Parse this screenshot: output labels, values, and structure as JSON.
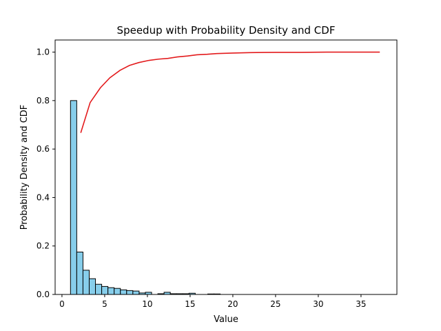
{
  "chart_data": {
    "type": "bar",
    "title": "Speedup with Probability Density and CDF",
    "xlabel": "Value",
    "ylabel": "Probability Density and CDF",
    "xlim": [
      -0.8,
      39.2
    ],
    "ylim": [
      0,
      1.05
    ],
    "x_ticks": [
      0,
      5,
      10,
      15,
      20,
      25,
      30,
      35
    ],
    "y_ticks": [
      0.0,
      0.2,
      0.4,
      0.6,
      0.8,
      1.0
    ],
    "grid": false,
    "legend": "none",
    "histogram": {
      "bin_edges": [
        1.0,
        1.73,
        2.46,
        3.19,
        3.92,
        4.65,
        5.38,
        6.11,
        6.84,
        7.57,
        8.3,
        9.03,
        9.76,
        10.49,
        11.22,
        11.95,
        12.68,
        13.41,
        14.14,
        14.87,
        15.6,
        16.33,
        17.06,
        17.79,
        18.52,
        19.25,
        19.98,
        20.71,
        21.44,
        22.17,
        22.9,
        23.63,
        24.36,
        25.09,
        25.82,
        26.55,
        27.28,
        28.01,
        28.74,
        29.47,
        30.2,
        30.93,
        31.66,
        32.39,
        33.12,
        33.85,
        34.58,
        35.31,
        36.04,
        36.77,
        37.5
      ],
      "density": [
        0.8,
        0.175,
        0.1,
        0.065,
        0.042,
        0.033,
        0.028,
        0.025,
        0.019,
        0.016,
        0.014,
        0.006,
        0.009,
        0.0,
        0.003,
        0.009,
        0.003,
        0.003,
        0.003,
        0.005,
        0.0,
        0.0,
        0.002,
        0.002,
        0.0,
        0.0,
        0.0,
        0.0,
        0.0,
        0.0,
        0.0,
        0.0,
        0.0,
        0.0,
        0.0,
        0.0,
        0.0,
        0.0,
        0.0,
        0.0,
        0.0,
        0.0,
        0.0,
        0.0,
        0.0,
        0.0,
        0.0,
        0.0,
        0.0,
        0.0
      ],
      "fill_color": "#87ceeb",
      "edge_color": "#000000"
    },
    "series": [
      {
        "type": "line",
        "color": "#e31a1c",
        "x": [
          2.2,
          3.3,
          4.5,
          5.6,
          6.8,
          7.9,
          9.0,
          10.2,
          11.3,
          12.4,
          13.5,
          14.7,
          15.8,
          17.0,
          18.1,
          20.0,
          22.0,
          25.0,
          28.0,
          31.0,
          34.0,
          37.2
        ],
        "y": [
          0.667,
          0.792,
          0.853,
          0.894,
          0.925,
          0.945,
          0.957,
          0.966,
          0.971,
          0.974,
          0.98,
          0.984,
          0.989,
          0.991,
          0.994,
          0.996,
          0.998,
          0.999,
          0.999,
          1.0,
          1.0,
          1.0
        ]
      }
    ]
  }
}
